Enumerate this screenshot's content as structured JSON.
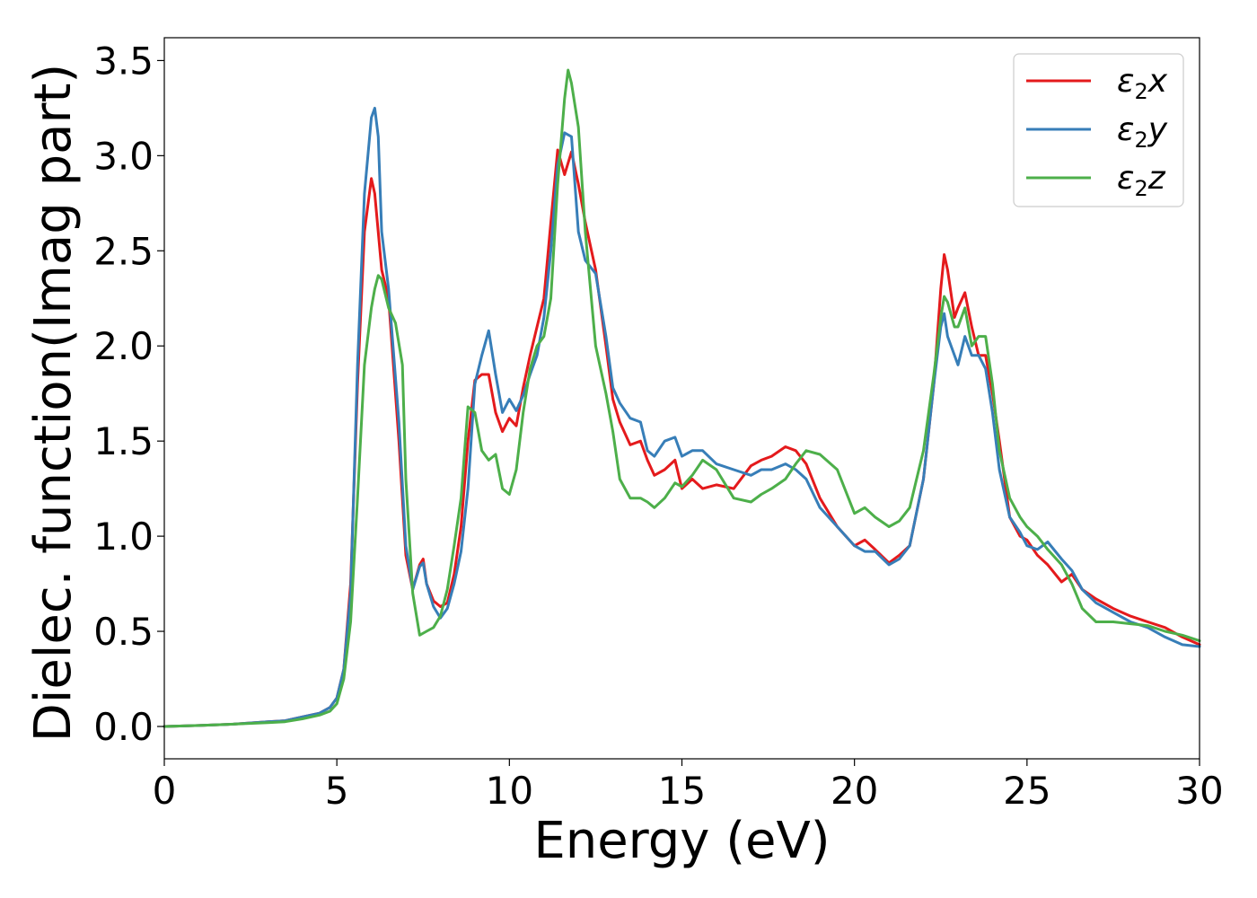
{
  "chart_data": {
    "type": "line",
    "title": "",
    "xlabel": "Energy (eV)",
    "ylabel": "Dielec. function(Imag part)",
    "xlim": [
      0,
      30
    ],
    "ylim": [
      -0.17,
      3.62
    ],
    "xticks": [
      0,
      5,
      10,
      15,
      20,
      25,
      30
    ],
    "yticks": [
      0.0,
      0.5,
      1.0,
      1.5,
      2.0,
      2.5,
      3.0,
      3.5
    ],
    "xtick_labels": [
      "0",
      "5",
      "10",
      "15",
      "20",
      "25",
      "30"
    ],
    "ytick_labels": [
      "0.0",
      "0.5",
      "1.0",
      "1.5",
      "2.0",
      "2.5",
      "3.0",
      "3.5"
    ],
    "grid": false,
    "legend_position": "top-right",
    "series": [
      {
        "name": "ε₂x",
        "legend_main": "ε",
        "legend_sub": "2",
        "legend_suffix": "x",
        "color": "#e41a1c",
        "x": [
          0,
          1,
          2,
          3,
          3.5,
          4,
          4.5,
          4.8,
          5.0,
          5.2,
          5.4,
          5.6,
          5.8,
          6.0,
          6.1,
          6.3,
          6.5,
          6.8,
          7.0,
          7.2,
          7.4,
          7.5,
          7.6,
          7.8,
          8.0,
          8.2,
          8.4,
          8.6,
          8.8,
          9.0,
          9.2,
          9.4,
          9.6,
          9.8,
          10.0,
          10.2,
          10.4,
          10.6,
          10.8,
          11.0,
          11.2,
          11.4,
          11.6,
          11.8,
          12.0,
          12.2,
          12.5,
          12.8,
          13.0,
          13.2,
          13.5,
          13.8,
          14.0,
          14.2,
          14.5,
          14.8,
          15.0,
          15.3,
          15.6,
          16.0,
          16.5,
          17.0,
          17.3,
          17.6,
          18.0,
          18.3,
          18.6,
          19.0,
          19.5,
          20.0,
          20.3,
          20.6,
          21.0,
          21.3,
          21.6,
          22.0,
          22.3,
          22.5,
          22.6,
          22.7,
          22.9,
          23.0,
          23.2,
          23.4,
          23.6,
          23.8,
          24.0,
          24.2,
          24.5,
          24.8,
          25.0,
          25.3,
          25.6,
          26.0,
          26.3,
          26.6,
          27.0,
          27.5,
          28.0,
          28.5,
          29.0,
          29.5,
          30.0
        ],
        "y": [
          0.0,
          0.005,
          0.012,
          0.025,
          0.03,
          0.05,
          0.07,
          0.1,
          0.15,
          0.3,
          0.75,
          1.8,
          2.6,
          2.88,
          2.8,
          2.4,
          2.25,
          1.5,
          0.9,
          0.72,
          0.85,
          0.88,
          0.75,
          0.66,
          0.63,
          0.65,
          0.8,
          1.05,
          1.5,
          1.82,
          1.85,
          1.85,
          1.65,
          1.55,
          1.62,
          1.58,
          1.78,
          1.95,
          2.1,
          2.25,
          2.65,
          3.03,
          2.9,
          3.02,
          2.85,
          2.65,
          2.4,
          2.0,
          1.72,
          1.6,
          1.48,
          1.5,
          1.4,
          1.32,
          1.35,
          1.4,
          1.25,
          1.3,
          1.25,
          1.27,
          1.25,
          1.37,
          1.4,
          1.42,
          1.47,
          1.45,
          1.38,
          1.2,
          1.05,
          0.95,
          0.98,
          0.93,
          0.86,
          0.9,
          0.95,
          1.3,
          1.8,
          2.3,
          2.48,
          2.4,
          2.15,
          2.2,
          2.28,
          2.1,
          1.95,
          1.95,
          1.75,
          1.5,
          1.1,
          1.0,
          0.98,
          0.9,
          0.85,
          0.76,
          0.8,
          0.72,
          0.67,
          0.62,
          0.58,
          0.55,
          0.52,
          0.47,
          0.43
        ]
      },
      {
        "name": "ε₂y",
        "legend_main": "ε",
        "legend_sub": "2",
        "legend_suffix": "y",
        "color": "#377eb8",
        "x": [
          0,
          1,
          2,
          3,
          3.5,
          4,
          4.5,
          4.8,
          5.0,
          5.2,
          5.4,
          5.6,
          5.8,
          6.0,
          6.1,
          6.2,
          6.3,
          6.5,
          6.8,
          7.0,
          7.2,
          7.4,
          7.5,
          7.6,
          7.8,
          8.0,
          8.2,
          8.4,
          8.6,
          8.8,
          9.0,
          9.2,
          9.4,
          9.6,
          9.8,
          10.0,
          10.2,
          10.4,
          10.6,
          10.8,
          11.0,
          11.2,
          11.4,
          11.6,
          11.8,
          12.0,
          12.2,
          12.5,
          12.8,
          13.0,
          13.2,
          13.5,
          13.8,
          14.0,
          14.2,
          14.5,
          14.8,
          15.0,
          15.3,
          15.6,
          16.0,
          16.5,
          17.0,
          17.3,
          17.6,
          18.0,
          18.3,
          18.6,
          19.0,
          19.5,
          20.0,
          20.3,
          20.6,
          21.0,
          21.3,
          21.6,
          22.0,
          22.3,
          22.5,
          22.6,
          22.7,
          22.9,
          23.0,
          23.2,
          23.4,
          23.6,
          23.8,
          24.0,
          24.2,
          24.5,
          24.8,
          25.0,
          25.3,
          25.6,
          26.0,
          26.3,
          26.6,
          27.0,
          27.5,
          28.0,
          28.5,
          29.0,
          29.5,
          30.0
        ],
        "y": [
          0.0,
          0.005,
          0.012,
          0.025,
          0.03,
          0.05,
          0.07,
          0.1,
          0.15,
          0.3,
          0.7,
          1.9,
          2.8,
          3.2,
          3.25,
          3.1,
          2.6,
          2.3,
          1.6,
          0.95,
          0.72,
          0.84,
          0.86,
          0.75,
          0.63,
          0.57,
          0.62,
          0.75,
          0.92,
          1.25,
          1.8,
          1.95,
          2.08,
          1.85,
          1.65,
          1.72,
          1.66,
          1.74,
          1.85,
          1.95,
          2.15,
          2.5,
          2.95,
          3.12,
          3.1,
          2.6,
          2.45,
          2.38,
          2.05,
          1.78,
          1.7,
          1.62,
          1.6,
          1.45,
          1.42,
          1.5,
          1.52,
          1.42,
          1.45,
          1.45,
          1.38,
          1.35,
          1.32,
          1.35,
          1.35,
          1.38,
          1.35,
          1.3,
          1.15,
          1.05,
          0.95,
          0.92,
          0.92,
          0.85,
          0.88,
          0.95,
          1.3,
          1.8,
          2.1,
          2.17,
          2.05,
          1.95,
          1.9,
          2.05,
          1.95,
          1.95,
          1.88,
          1.65,
          1.35,
          1.1,
          1.02,
          0.95,
          0.93,
          0.97,
          0.88,
          0.82,
          0.72,
          0.65,
          0.6,
          0.55,
          0.52,
          0.47,
          0.43,
          0.42
        ]
      },
      {
        "name": "ε₂z",
        "legend_main": "ε",
        "legend_sub": "2",
        "legend_suffix": "z",
        "color": "#4daf4a",
        "x": [
          0,
          1,
          2,
          3,
          3.5,
          4,
          4.5,
          4.8,
          5.0,
          5.2,
          5.4,
          5.6,
          5.8,
          6.0,
          6.1,
          6.2,
          6.3,
          6.5,
          6.7,
          6.9,
          7.0,
          7.2,
          7.4,
          7.6,
          7.8,
          8.0,
          8.2,
          8.4,
          8.6,
          8.8,
          9.0,
          9.2,
          9.4,
          9.6,
          9.8,
          10.0,
          10.2,
          10.4,
          10.6,
          10.8,
          11.0,
          11.2,
          11.4,
          11.6,
          11.7,
          11.8,
          12.0,
          12.2,
          12.5,
          12.8,
          13.0,
          13.2,
          13.5,
          13.8,
          14.0,
          14.2,
          14.5,
          14.8,
          15.0,
          15.3,
          15.6,
          16.0,
          16.5,
          17.0,
          17.3,
          17.6,
          18.0,
          18.3,
          18.6,
          19.0,
          19.5,
          20.0,
          20.3,
          20.6,
          21.0,
          21.3,
          21.6,
          22.0,
          22.3,
          22.5,
          22.6,
          22.7,
          22.9,
          23.0,
          23.2,
          23.4,
          23.6,
          23.8,
          24.0,
          24.2,
          24.5,
          24.8,
          25.0,
          25.3,
          25.6,
          26.0,
          26.3,
          26.6,
          27.0,
          27.5,
          28.0,
          28.5,
          29.0,
          29.5,
          30.0
        ],
        "y": [
          0.0,
          0.005,
          0.012,
          0.02,
          0.025,
          0.04,
          0.06,
          0.08,
          0.12,
          0.25,
          0.55,
          1.2,
          1.9,
          2.2,
          2.3,
          2.37,
          2.35,
          2.2,
          2.12,
          1.9,
          1.3,
          0.7,
          0.48,
          0.5,
          0.52,
          0.58,
          0.72,
          0.95,
          1.2,
          1.68,
          1.65,
          1.45,
          1.4,
          1.43,
          1.25,
          1.22,
          1.35,
          1.65,
          1.88,
          2.0,
          2.05,
          2.25,
          2.85,
          3.3,
          3.45,
          3.38,
          3.15,
          2.6,
          2.0,
          1.75,
          1.55,
          1.3,
          1.2,
          1.2,
          1.18,
          1.15,
          1.2,
          1.28,
          1.26,
          1.32,
          1.4,
          1.35,
          1.2,
          1.18,
          1.22,
          1.25,
          1.3,
          1.38,
          1.45,
          1.43,
          1.35,
          1.12,
          1.15,
          1.1,
          1.05,
          1.08,
          1.15,
          1.45,
          1.85,
          2.15,
          2.26,
          2.23,
          2.1,
          2.1,
          2.2,
          2.0,
          2.05,
          2.05,
          1.8,
          1.45,
          1.2,
          1.1,
          1.05,
          1.0,
          0.93,
          0.85,
          0.75,
          0.62,
          0.55,
          0.55,
          0.54,
          0.53,
          0.5,
          0.48,
          0.45
        ]
      }
    ]
  }
}
